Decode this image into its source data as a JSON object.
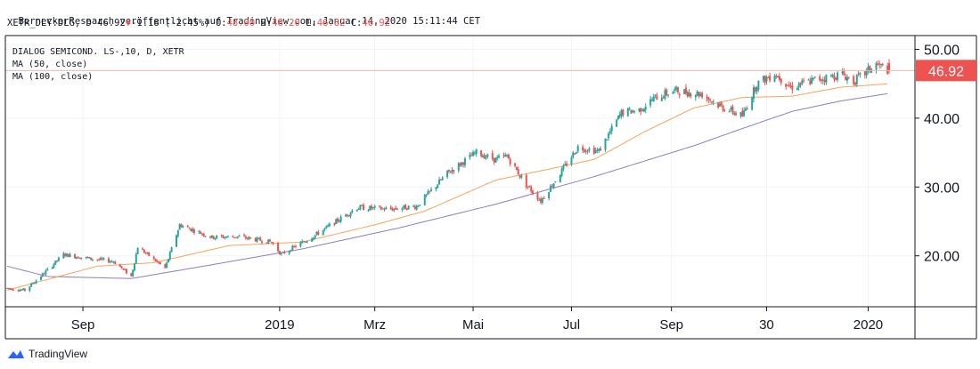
{
  "header": {
    "publisher_line": "BerneckerResearch veröffentlicht auf TradingView.com, Januar 14, 2020 15:11:44 CET",
    "symbol": "XETR_DLY:DLG, D",
    "last": "46.92",
    "change_arrow": "▼",
    "change": "-1.18 (-2.45%)",
    "o_label": "O:",
    "o_val": "48.00",
    "h_label": "H:",
    "h_val": "48.20",
    "l_label": "L:",
    "l_val": "46.82",
    "c_label": "C:",
    "c_val": "46.92"
  },
  "pane": {
    "legend_title": "DIALOG SEMICOND. LS-,10, D, XETR",
    "ma50_label": "MA (50, close)",
    "ma100_label": "MA (100, close)"
  },
  "footer": {
    "brand": "TradingView"
  },
  "colors": {
    "up": "#26a69a",
    "down": "#ef5350",
    "ma50": "#f7a35c",
    "ma100": "#8e7cc3",
    "grid": "#f0f3fa",
    "price_line": "#ef5350"
  },
  "chart_data": {
    "type": "candlestick",
    "y_axis_ticks": [
      "20.00",
      "30.00",
      "40.00",
      "50.00"
    ],
    "ylim": [
      12.6,
      52
    ],
    "last_price_label": "46.92",
    "last_price": 46.92,
    "x_axis_ticks": [
      "Sep",
      "2019",
      "Mrz",
      "Mai",
      "Jul",
      "Sep",
      "30",
      "2020"
    ],
    "price_path": [
      [
        "2018-07-16",
        15.3
      ],
      [
        "2018-07-27",
        15.0
      ],
      [
        "2018-08-08",
        17.5
      ],
      [
        "2018-08-20",
        20.2
      ],
      [
        "2018-09-05",
        19.6
      ],
      [
        "2018-09-20",
        19.2
      ],
      [
        "2018-10-01",
        17.0
      ],
      [
        "2018-10-05",
        21.3
      ],
      [
        "2018-10-22",
        18.2
      ],
      [
        "2018-10-31",
        24.5
      ],
      [
        "2018-11-20",
        22.7
      ],
      [
        "2018-12-06",
        22.8
      ],
      [
        "2018-12-27",
        22.0
      ],
      [
        "2019-01-02",
        20.2
      ],
      [
        "2019-01-23",
        23.0
      ],
      [
        "2019-02-18",
        27.0
      ],
      [
        "2019-03-11",
        26.8
      ],
      [
        "2019-03-27",
        27.2
      ],
      [
        "2019-04-15",
        32.0
      ],
      [
        "2019-05-03",
        35.0
      ],
      [
        "2019-05-15",
        34.0
      ],
      [
        "2019-05-22",
        34.5
      ],
      [
        "2019-06-03",
        30.3
      ],
      [
        "2019-06-12",
        28.0
      ],
      [
        "2019-06-24",
        32.0
      ],
      [
        "2019-07-05",
        35.8
      ],
      [
        "2019-07-18",
        35.2
      ],
      [
        "2019-08-01",
        40.8
      ],
      [
        "2019-08-12",
        41.2
      ],
      [
        "2019-08-22",
        43.0
      ],
      [
        "2019-09-03",
        44.0
      ],
      [
        "2019-09-20",
        43.5
      ],
      [
        "2019-10-01",
        41.8
      ],
      [
        "2019-10-15",
        40.3
      ],
      [
        "2019-10-24",
        45.0
      ],
      [
        "2019-11-04",
        46.5
      ],
      [
        "2019-11-14",
        44.5
      ],
      [
        "2019-11-28",
        45.5
      ],
      [
        "2019-12-16",
        46.4
      ],
      [
        "2019-12-23",
        45.3
      ],
      [
        "2020-01-06",
        47.8
      ],
      [
        "2020-01-14",
        46.92
      ]
    ],
    "ma50_path": [
      [
        "2018-07-16",
        15.0
      ],
      [
        "2018-09-10",
        18.5
      ],
      [
        "2018-10-15",
        19.0
      ],
      [
        "2018-12-01",
        21.5
      ],
      [
        "2019-01-15",
        22.0
      ],
      [
        "2019-03-01",
        24.5
      ],
      [
        "2019-04-01",
        26.5
      ],
      [
        "2019-05-15",
        31.0
      ],
      [
        "2019-06-15",
        32.5
      ],
      [
        "2019-07-15",
        34.0
      ],
      [
        "2019-08-15",
        38.0
      ],
      [
        "2019-09-15",
        41.5
      ],
      [
        "2019-10-15",
        43.0
      ],
      [
        "2019-11-15",
        43.2
      ],
      [
        "2019-12-15",
        44.5
      ],
      [
        "2020-01-14",
        45.0
      ]
    ],
    "ma100_path": [
      [
        "2018-07-16",
        18.5
      ],
      [
        "2018-08-10",
        17.0
      ],
      [
        "2018-10-01",
        16.7
      ],
      [
        "2018-11-15",
        18.5
      ],
      [
        "2019-01-15",
        21.0
      ],
      [
        "2019-03-15",
        24.0
      ],
      [
        "2019-05-15",
        27.5
      ],
      [
        "2019-07-15",
        31.5
      ],
      [
        "2019-09-15",
        36.0
      ],
      [
        "2019-10-15",
        38.5
      ],
      [
        "2019-11-15",
        41.0
      ],
      [
        "2019-12-15",
        42.5
      ],
      [
        "2020-01-14",
        43.6
      ]
    ]
  }
}
